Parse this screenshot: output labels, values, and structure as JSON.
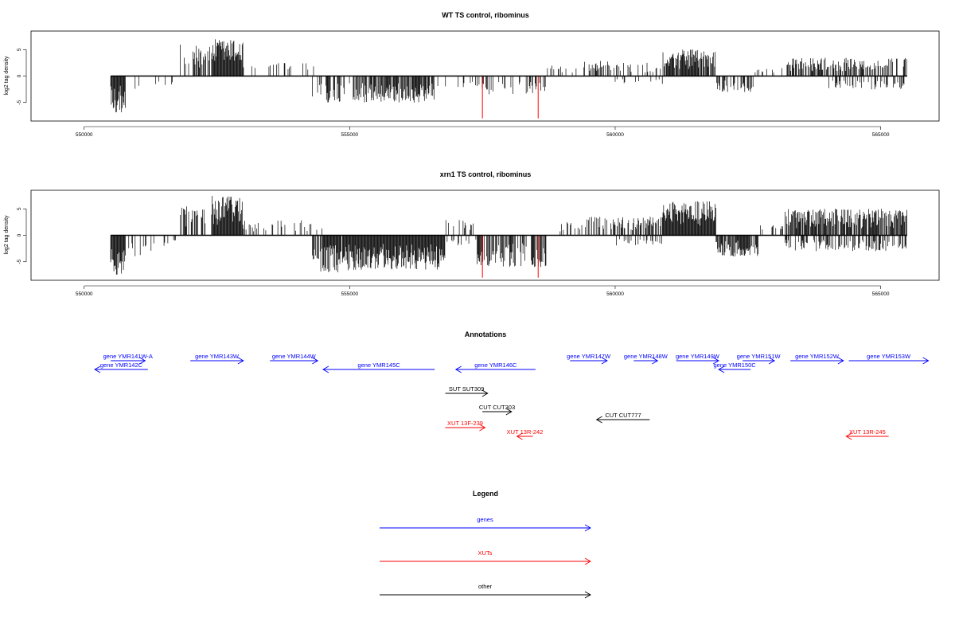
{
  "chart_data": [
    {
      "type": "bar",
      "title": "WT TS control, ribominus",
      "ylabel": "log2 tag density",
      "xlim": [
        549000,
        566100
      ],
      "ylim": [
        -8.5,
        8.5
      ],
      "xticks": [
        550000,
        555000,
        560000,
        565000
      ],
      "yticks": [
        -5,
        0,
        5
      ],
      "data_range": [
        550500,
        565500
      ],
      "highlight_color": "#ff0000",
      "highlights": [
        {
          "x": 557500,
          "y": -8
        },
        {
          "x": 558550,
          "y": -8
        }
      ],
      "profile": [
        {
          "from": 550500,
          "to": 550780,
          "sign": -1,
          "max": 7,
          "density": 1.0
        },
        {
          "from": 550780,
          "to": 551200,
          "sign": -1,
          "max": 3,
          "density": 0.15
        },
        {
          "from": 551300,
          "to": 551800,
          "sign": -1,
          "max": 2,
          "density": 0.1
        },
        {
          "from": 551800,
          "to": 552400,
          "sign": 1,
          "max": 6,
          "density": 0.4
        },
        {
          "from": 552400,
          "to": 553000,
          "sign": 1,
          "max": 7,
          "density": 1.0
        },
        {
          "from": 553000,
          "to": 554500,
          "sign": 1,
          "max": 2.5,
          "density": 0.15
        },
        {
          "from": 554300,
          "to": 555100,
          "sign": -1,
          "max": 5,
          "density": 0.45
        },
        {
          "from": 555100,
          "to": 556600,
          "sign": -1,
          "max": 5,
          "density": 0.8
        },
        {
          "from": 556600,
          "to": 557400,
          "sign": -1,
          "max": 2.5,
          "density": 0.15
        },
        {
          "from": 557400,
          "to": 558700,
          "sign": -1,
          "max": 3.5,
          "density": 0.3
        },
        {
          "from": 558700,
          "to": 559400,
          "sign": 1,
          "max": 2,
          "density": 0.1
        },
        {
          "from": 559400,
          "to": 560000,
          "sign": 1,
          "max": 3,
          "density": 0.35
        },
        {
          "from": 560000,
          "to": 560900,
          "sign": 1,
          "max": 2.5,
          "density": 0.3
        },
        {
          "from": 560000,
          "to": 560900,
          "sign": -1,
          "max": 1.5,
          "density": 0.2
        },
        {
          "from": 560900,
          "to": 561900,
          "sign": 1,
          "max": 5,
          "density": 0.9
        },
        {
          "from": 561900,
          "to": 562600,
          "sign": -1,
          "max": 3,
          "density": 0.5
        },
        {
          "from": 562600,
          "to": 563200,
          "sign": 1,
          "max": 1.5,
          "density": 0.2
        },
        {
          "from": 563200,
          "to": 564000,
          "sign": 1,
          "max": 3.5,
          "density": 0.7
        },
        {
          "from": 564000,
          "to": 565500,
          "sign": 1,
          "max": 3.5,
          "density": 0.55
        },
        {
          "from": 564000,
          "to": 565500,
          "sign": -1,
          "max": 2.5,
          "density": 0.35
        }
      ]
    },
    {
      "type": "bar",
      "title": "xrn1 TS control, ribominus",
      "ylabel": "log2 tag density",
      "xlim": [
        549000,
        566100
      ],
      "ylim": [
        -8.5,
        8.5
      ],
      "xticks": [
        550000,
        555000,
        560000,
        565000
      ],
      "yticks": [
        -5,
        0,
        5
      ],
      "data_range": [
        550500,
        565500
      ],
      "highlight_color": "#ff0000",
      "highlights": [
        {
          "x": 557500,
          "y": -8
        },
        {
          "x": 558550,
          "y": -8
        }
      ],
      "profile": [
        {
          "from": 550500,
          "to": 550780,
          "sign": -1,
          "max": 7.5,
          "density": 1.0
        },
        {
          "from": 550780,
          "to": 551300,
          "sign": -1,
          "max": 4,
          "density": 0.25
        },
        {
          "from": 551300,
          "to": 551800,
          "sign": -1,
          "max": 2,
          "density": 0.1
        },
        {
          "from": 551800,
          "to": 552400,
          "sign": 1,
          "max": 5.5,
          "density": 0.45
        },
        {
          "from": 552400,
          "to": 553000,
          "sign": 1,
          "max": 7.5,
          "density": 1.0
        },
        {
          "from": 553000,
          "to": 554500,
          "sign": 1,
          "max": 3,
          "density": 0.2
        },
        {
          "from": 554300,
          "to": 555100,
          "sign": -1,
          "max": 7,
          "density": 0.9
        },
        {
          "from": 555100,
          "to": 556800,
          "sign": -1,
          "max": 6.5,
          "density": 1.0
        },
        {
          "from": 556800,
          "to": 557400,
          "sign": -1,
          "max": 2,
          "density": 0.15
        },
        {
          "from": 556800,
          "to": 557400,
          "sign": 1,
          "max": 3,
          "density": 0.3
        },
        {
          "from": 557400,
          "to": 558700,
          "sign": -1,
          "max": 6,
          "density": 0.7
        },
        {
          "from": 558700,
          "to": 559400,
          "sign": 1,
          "max": 2.5,
          "density": 0.15
        },
        {
          "from": 559400,
          "to": 560000,
          "sign": 1,
          "max": 3.5,
          "density": 0.45
        },
        {
          "from": 560000,
          "to": 560900,
          "sign": 1,
          "max": 3.5,
          "density": 0.55
        },
        {
          "from": 560000,
          "to": 560900,
          "sign": -1,
          "max": 2,
          "density": 0.25
        },
        {
          "from": 560900,
          "to": 561900,
          "sign": 1,
          "max": 6.5,
          "density": 1.0
        },
        {
          "from": 561900,
          "to": 562700,
          "sign": -1,
          "max": 4,
          "density": 0.85
        },
        {
          "from": 562700,
          "to": 563200,
          "sign": 1,
          "max": 2,
          "density": 0.3
        },
        {
          "from": 563200,
          "to": 565500,
          "sign": 1,
          "max": 5,
          "density": 0.85
        },
        {
          "from": 563200,
          "to": 565500,
          "sign": -1,
          "max": 3,
          "density": 0.5
        }
      ]
    }
  ],
  "annotations": {
    "title": "Annotations",
    "colors": {
      "genes": "#0000ff",
      "XUTs": "#ff0000",
      "other": "#000000"
    },
    "xlim": [
      549000,
      566100
    ],
    "features": [
      {
        "label": "gene YMR141W-A",
        "kind": "genes",
        "start": 551150,
        "end": 550500,
        "strand": "+",
        "row": 0
      },
      {
        "label": "gene YMR142C",
        "kind": "genes",
        "start": 550200,
        "end": 551200,
        "strand": "-",
        "row": 1
      },
      {
        "label": "gene YMR143W",
        "kind": "genes",
        "start": 552000,
        "end": 553000,
        "strand": "+",
        "row": 0
      },
      {
        "label": "gene YMR144W",
        "kind": "genes",
        "start": 553500,
        "end": 554400,
        "strand": "+",
        "row": 0
      },
      {
        "label": "gene YMR145C",
        "kind": "genes",
        "start": 554500,
        "end": 556600,
        "strand": "-",
        "row": 1
      },
      {
        "label": "gene YMR146C",
        "kind": "genes",
        "start": 557000,
        "end": 558500,
        "strand": "-",
        "row": 1
      },
      {
        "label": "gene YMR147W",
        "kind": "genes",
        "start": 559150,
        "end": 559850,
        "strand": "+",
        "row": 0
      },
      {
        "label": "gene YMR148W",
        "kind": "genes",
        "start": 560350,
        "end": 560800,
        "strand": "+",
        "row": 0
      },
      {
        "label": "gene YMR149W",
        "kind": "genes",
        "start": 561150,
        "end": 561950,
        "strand": "+",
        "row": 0
      },
      {
        "label": "gene YMR150C",
        "kind": "genes",
        "start": 561950,
        "end": 562550,
        "strand": "-",
        "row": 1
      },
      {
        "label": "gene YMR151W",
        "kind": "genes",
        "start": 562400,
        "end": 563000,
        "strand": "+",
        "row": 0
      },
      {
        "label": "gene YMR152W",
        "kind": "genes",
        "start": 563300,
        "end": 564300,
        "strand": "+",
        "row": 0
      },
      {
        "label": "gene YMR153W",
        "kind": "genes",
        "start": 564400,
        "end": 565900,
        "strand": "+",
        "row": 0
      },
      {
        "label": "SUT SUT309",
        "kind": "other",
        "start": 556800,
        "end": 557600,
        "strand": "+",
        "row": 2
      },
      {
        "label": "CUT CUT303",
        "kind": "other",
        "start": 557500,
        "end": 558050,
        "strand": "+",
        "row": 3
      },
      {
        "label": "CUT CUT777",
        "kind": "other",
        "start": 559650,
        "end": 560650,
        "strand": "-",
        "row": 4
      },
      {
        "label": "XUT 13F-239",
        "kind": "XUTs",
        "start": 556800,
        "end": 557550,
        "strand": "+",
        "row": 5
      },
      {
        "label": "XUT 13R-242",
        "kind": "XUTs",
        "start": 558150,
        "end": 558450,
        "strand": "-",
        "row": 6
      },
      {
        "label": "XUT 13R-245",
        "kind": "XUTs",
        "start": 564350,
        "end": 565150,
        "strand": "-",
        "row": 6
      }
    ]
  },
  "legend": {
    "title": "Legend",
    "items": [
      {
        "label": "genes",
        "color": "#0000ff"
      },
      {
        "label": "XUTs",
        "color": "#ff0000"
      },
      {
        "label": "other",
        "color": "#000000"
      }
    ]
  }
}
